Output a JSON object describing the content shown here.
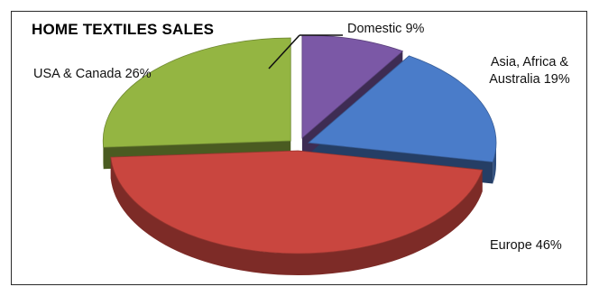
{
  "chart_data": {
    "type": "pie",
    "title": "HOME TEXTILES SALES",
    "slices": [
      {
        "label": "Domestic",
        "value": 9,
        "pct_label": "9%",
        "color": "#7b58a6"
      },
      {
        "label": "Asia, Africa & Australia",
        "value": 19,
        "pct_label": "19%",
        "color": "#4a7cc9"
      },
      {
        "label": "Europe",
        "value": 46,
        "pct_label": "46%",
        "color": "#c9463f"
      },
      {
        "label": "USA & Canada",
        "value": 26,
        "pct_label": "26%",
        "color": "#94b542"
      }
    ],
    "style": "3d-exploded",
    "legend": "none"
  }
}
